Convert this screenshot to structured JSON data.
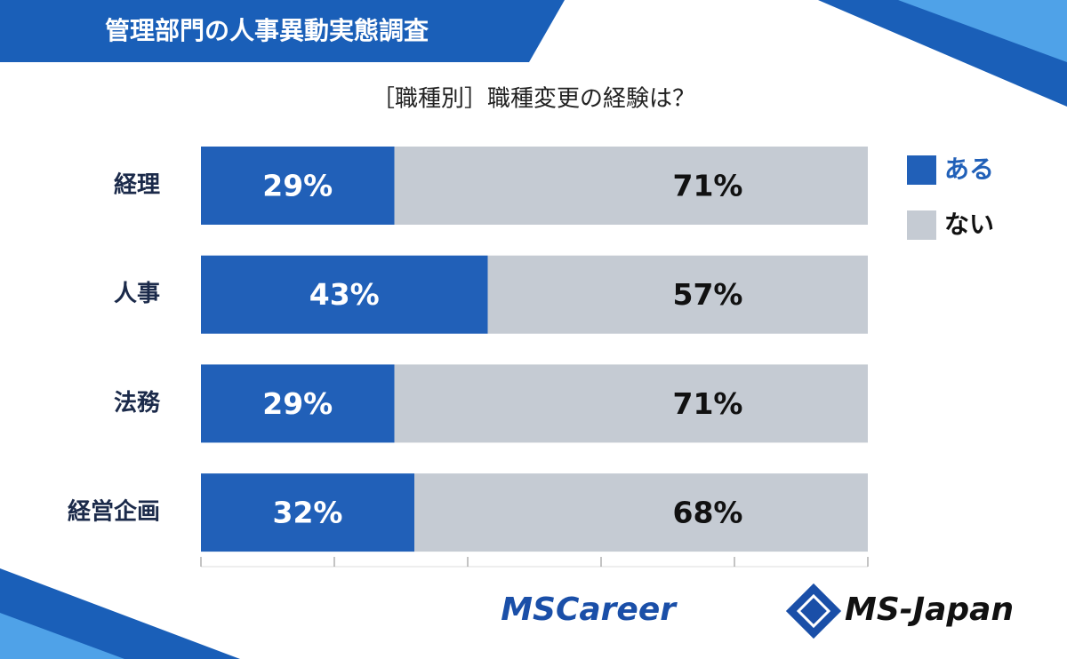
{
  "header": {
    "title": "管理部門の人事異動実態調査"
  },
  "chart_data": {
    "type": "stacked-bar-horizontal",
    "title": "［職種別］職種変更の経験は？",
    "categories": [
      "経理",
      "人事",
      "法務",
      "経営企画"
    ],
    "series": [
      {
        "name": "ある",
        "color": "#2160b8",
        "label_color": "#ffffff",
        "values": [
          29,
          43,
          29,
          32
        ],
        "value_labels": [
          "29%",
          "43%",
          "29%",
          "32%"
        ]
      },
      {
        "name": "ない",
        "color": "#c5cbd3",
        "label_color": "#111111",
        "values": [
          71,
          57,
          71,
          68
        ],
        "value_labels": [
          "71%",
          "57%",
          "71%",
          "68%"
        ]
      }
    ],
    "xlim": [
      0,
      100
    ],
    "xticks": [
      0,
      20,
      40,
      60,
      80,
      100
    ],
    "legend": "right"
  },
  "logos": [
    "MSCareer",
    "MS-Japan"
  ]
}
